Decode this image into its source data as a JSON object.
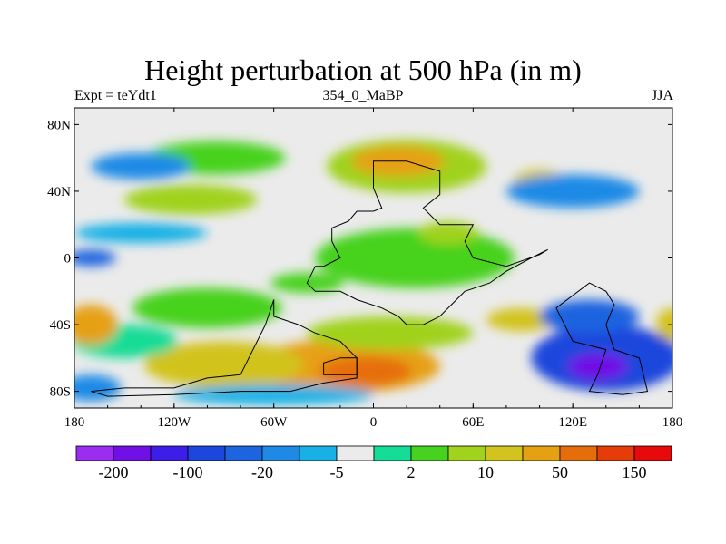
{
  "chart_data": {
    "type": "heatmap",
    "title": "Height perturbation at 500 hPa (in m)",
    "left_string": "Expt = teYdt1",
    "center_string": "354_0_MaBP",
    "right_string": "JJA",
    "xlim": [
      -180,
      180
    ],
    "ylim": [
      -90,
      90
    ],
    "x_ticks": [
      {
        "value": -180,
        "label": "180"
      },
      {
        "value": -120,
        "label": "120W"
      },
      {
        "value": -60,
        "label": "60W"
      },
      {
        "value": 0,
        "label": "0"
      },
      {
        "value": 60,
        "label": "60E"
      },
      {
        "value": 120,
        "label": "120E"
      },
      {
        "value": 180,
        "label": "180"
      }
    ],
    "y_ticks": [
      {
        "value": 80,
        "label": "80N"
      },
      {
        "value": 40,
        "label": "40N"
      },
      {
        "value": 0,
        "label": "0"
      },
      {
        "value": -40,
        "label": "40S"
      },
      {
        "value": -80,
        "label": "80S"
      }
    ],
    "colorbar": {
      "colors": [
        "#9a2df0",
        "#7010e6",
        "#3c1ee8",
        "#1c46dc",
        "#1c64e0",
        "#1e8ae6",
        "#19b0e6",
        "#ebebeb",
        "#15dc96",
        "#46d21e",
        "#a0d21e",
        "#d2c31e",
        "#e6a014",
        "#e66e0a",
        "#e63c0a",
        "#e60a0a"
      ],
      "tick_labels": [
        {
          "boundary": 1,
          "label": "-200"
        },
        {
          "boundary": 3,
          "label": "-100"
        },
        {
          "boundary": 5,
          "label": "-20"
        },
        {
          "boundary": 7,
          "label": "-5"
        },
        {
          "boundary": 9,
          "label": "2"
        },
        {
          "boundary": 11,
          "label": "10"
        },
        {
          "boundary": 13,
          "label": "50"
        },
        {
          "boundary": 15,
          "label": "150"
        }
      ]
    },
    "anomalies": [
      {
        "lon": -18,
        "lat": -65,
        "rx": 58,
        "ry": 16,
        "level": 12
      },
      {
        "lon": -5,
        "lat": -68,
        "rx": 28,
        "ry": 9,
        "level": 13
      },
      {
        "lon": -90,
        "lat": -64,
        "rx": 48,
        "ry": 14,
        "level": 11
      },
      {
        "lon": 10,
        "lat": -45,
        "rx": 50,
        "ry": 10,
        "level": 10
      },
      {
        "lon": -150,
        "lat": -50,
        "rx": 32,
        "ry": 10,
        "level": 8
      },
      {
        "lon": -100,
        "lat": -30,
        "rx": 45,
        "ry": 12,
        "level": 9
      },
      {
        "lon": 20,
        "lat": 55,
        "rx": 48,
        "ry": 16,
        "level": 10
      },
      {
        "lon": 15,
        "lat": 58,
        "rx": 28,
        "ry": 9,
        "level": 12
      },
      {
        "lon": -95,
        "lat": 60,
        "rx": 42,
        "ry": 10,
        "level": 9
      },
      {
        "lon": -110,
        "lat": 35,
        "rx": 40,
        "ry": 9,
        "level": 10
      },
      {
        "lon": 25,
        "lat": 0,
        "rx": 60,
        "ry": 18,
        "level": 9
      },
      {
        "lon": 45,
        "lat": 15,
        "rx": 18,
        "ry": 7,
        "level": 10
      },
      {
        "lon": 100,
        "lat": 45,
        "rx": 16,
        "ry": 8,
        "level": 11
      },
      {
        "lon": 90,
        "lat": -37,
        "rx": 22,
        "ry": 7,
        "level": 11
      },
      {
        "lon": -170,
        "lat": -40,
        "rx": 16,
        "ry": 12,
        "level": 12
      },
      {
        "lon": 180,
        "lat": -40,
        "rx": 10,
        "ry": 10,
        "level": 11
      },
      {
        "lon": -40,
        "lat": -15,
        "rx": 22,
        "ry": 6,
        "level": 9
      },
      {
        "lon": -140,
        "lat": 15,
        "rx": 40,
        "ry": 6,
        "level": 6
      },
      {
        "lon": 120,
        "lat": 40,
        "rx": 40,
        "ry": 10,
        "level": 5
      },
      {
        "lon": -140,
        "lat": 55,
        "rx": 30,
        "ry": 8,
        "level": 5
      },
      {
        "lon": 140,
        "lat": -60,
        "rx": 45,
        "ry": 20,
        "level": 3
      },
      {
        "lon": 135,
        "lat": -65,
        "rx": 18,
        "ry": 8,
        "level": 1
      },
      {
        "lon": 130,
        "lat": -35,
        "rx": 30,
        "ry": 10,
        "level": 4
      },
      {
        "lon": -60,
        "lat": -82,
        "rx": 60,
        "ry": 6,
        "level": 6
      },
      {
        "lon": -170,
        "lat": -78,
        "rx": 18,
        "ry": 8,
        "level": 5
      },
      {
        "lon": -170,
        "lat": 0,
        "rx": 15,
        "ry": 5,
        "level": 4
      }
    ],
    "boundaries": [
      {
        "name": "africa-europe",
        "points": [
          [
            0,
            42
          ],
          [
            0,
            58
          ],
          [
            20,
            58
          ],
          [
            40,
            52
          ],
          [
            40,
            38
          ],
          [
            30,
            30
          ],
          [
            40,
            20
          ],
          [
            60,
            20
          ],
          [
            55,
            10
          ],
          [
            60,
            0
          ],
          [
            80,
            -5
          ],
          [
            100,
            2
          ],
          [
            105,
            5
          ],
          [
            95,
            0
          ],
          [
            80,
            -8
          ],
          [
            70,
            -15
          ],
          [
            55,
            -20
          ],
          [
            40,
            -35
          ],
          [
            30,
            -40
          ],
          [
            20,
            -40
          ],
          [
            15,
            -35
          ],
          [
            5,
            -30
          ],
          [
            -10,
            -25
          ],
          [
            -20,
            -20
          ],
          [
            -35,
            -20
          ],
          [
            -40,
            -15
          ],
          [
            -35,
            -5
          ],
          [
            -30,
            -5
          ],
          [
            -20,
            0
          ],
          [
            -25,
            10
          ],
          [
            -25,
            18
          ],
          [
            -15,
            22
          ],
          [
            -10,
            28
          ],
          [
            0,
            28
          ],
          [
            5,
            30
          ],
          [
            0,
            42
          ]
        ]
      },
      {
        "name": "south-america",
        "points": [
          [
            -60,
            -25
          ],
          [
            -60,
            -35
          ],
          [
            -45,
            -40
          ],
          [
            -35,
            -45
          ],
          [
            -20,
            -50
          ],
          [
            -10,
            -60
          ],
          [
            -10,
            -72
          ],
          [
            -30,
            -75
          ],
          [
            -50,
            -80
          ],
          [
            -80,
            -80
          ],
          [
            -120,
            -82
          ],
          [
            -160,
            -83
          ],
          [
            -170,
            -80
          ],
          [
            -150,
            -78
          ],
          [
            -120,
            -78
          ],
          [
            -100,
            -72
          ],
          [
            -80,
            -70
          ],
          [
            -75,
            -60
          ],
          [
            -70,
            -50
          ],
          [
            -65,
            -40
          ],
          [
            -60,
            -25
          ]
        ]
      },
      {
        "name": "antarctica-east",
        "points": [
          [
            110,
            -30
          ],
          [
            130,
            -15
          ],
          [
            140,
            -20
          ],
          [
            145,
            -28
          ],
          [
            140,
            -40
          ],
          [
            145,
            -55
          ],
          [
            160,
            -60
          ],
          [
            165,
            -80
          ],
          [
            150,
            -82
          ],
          [
            130,
            -80
          ],
          [
            135,
            -70
          ],
          [
            140,
            -55
          ],
          [
            120,
            -50
          ],
          [
            110,
            -30
          ]
        ]
      },
      {
        "name": "mid-block",
        "points": [
          [
            -20,
            -60
          ],
          [
            -10,
            -60
          ],
          [
            -10,
            -70
          ],
          [
            -30,
            -70
          ],
          [
            -30,
            -63
          ],
          [
            -20,
            -60
          ]
        ]
      }
    ]
  }
}
